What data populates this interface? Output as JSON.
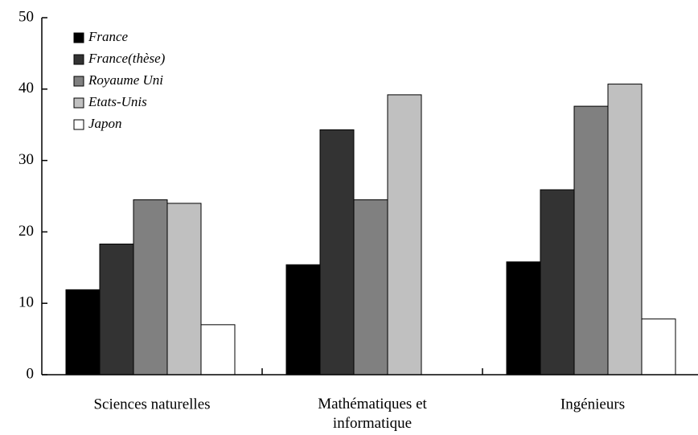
{
  "chart_data": {
    "type": "bar",
    "categories": [
      "Sciences naturelles",
      "Mathématiques et\ninformatique",
      "Ingénieurs"
    ],
    "series": [
      {
        "name": "France",
        "color": "#000000",
        "values": [
          11.9,
          15.4,
          15.8
        ]
      },
      {
        "name": "France(thèse)",
        "color": "#333333",
        "values": [
          18.3,
          34.3,
          25.9
        ]
      },
      {
        "name": "Royaume Uni",
        "color": "#808080",
        "values": [
          24.5,
          24.5,
          37.6
        ]
      },
      {
        "name": "Etats-Unis",
        "color": "#c0c0c0",
        "values": [
          24.0,
          39.2,
          40.7
        ]
      },
      {
        "name": "Japon",
        "color": "#ffffff",
        "values": [
          7.0,
          null,
          7.8
        ]
      }
    ],
    "ylim": [
      0,
      50
    ],
    "yticks": [
      0,
      10,
      20,
      30,
      40,
      50
    ],
    "legend": "upper left"
  }
}
